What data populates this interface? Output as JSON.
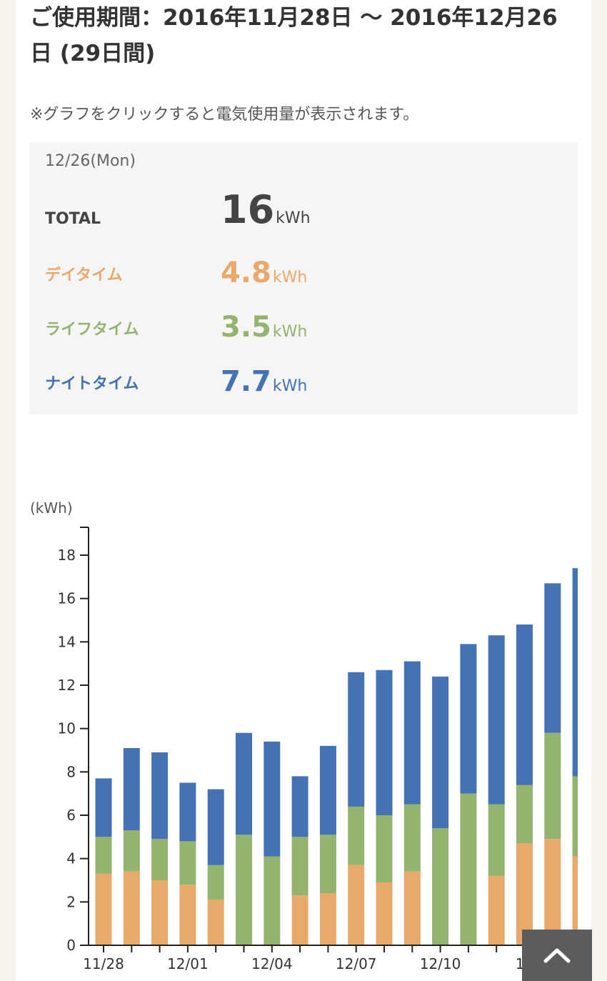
{
  "header": {
    "period_title": "ご使用期間：2016年11月28日 〜 2016年12月26日 (29日間)"
  },
  "note": "※グラフをクリックすると電気使用量が表示されます。",
  "summary": {
    "date": "12/26(Mon)",
    "unit": "kWh",
    "total": {
      "label": "TOTAL",
      "value": "16"
    },
    "daytime": {
      "label": "デイタイム",
      "value": "4.8"
    },
    "lifetime": {
      "label": "ライフタイム",
      "value": "3.5"
    },
    "nighttime": {
      "label": "ナイトタイム",
      "value": "7.7"
    }
  },
  "colors": {
    "daytime": "#e8a96b",
    "lifetime": "#94b36f",
    "nighttime": "#4472b4"
  },
  "back_to_top_icon": "chevron-up-icon",
  "chart_data": {
    "type": "bar",
    "stacked": true,
    "ylabel": "(kWh)",
    "ylim": [
      0,
      19
    ],
    "yticks": [
      0,
      2,
      4,
      6,
      8,
      10,
      12,
      14,
      16,
      18
    ],
    "categories": [
      "11/28",
      "11/29",
      "11/30",
      "12/01",
      "12/02",
      "12/03",
      "12/04",
      "12/05",
      "12/06",
      "12/07",
      "12/08",
      "12/09",
      "12/10",
      "12/11",
      "12/12",
      "12/13",
      "12/14",
      "12/15"
    ],
    "xtick_labels": [
      "11/28",
      "12/01",
      "12/04",
      "12/07",
      "12/10",
      "12/13"
    ],
    "xtick_visible_text": [
      "11/28",
      "12/01",
      "12/04",
      "12/07",
      "12/10",
      "12"
    ],
    "series": [
      {
        "color": "#e8a96b",
        "values": [
          3.3,
          3.4,
          3.0,
          2.8,
          2.1,
          0,
          0,
          2.3,
          2.4,
          3.7,
          2.9,
          3.4,
          0,
          0,
          3.2,
          4.7,
          4.9,
          4.1
        ]
      },
      {
        "color": "#94b36f",
        "values": [
          1.7,
          1.9,
          1.9,
          2.0,
          1.6,
          5.1,
          4.1,
          2.7,
          2.7,
          2.7,
          3.1,
          3.1,
          5.4,
          7.0,
          3.3,
          2.7,
          4.9,
          3.7
        ]
      },
      {
        "color": "#4472b4",
        "values": [
          2.7,
          3.8,
          4.0,
          2.7,
          3.5,
          4.7,
          5.3,
          2.8,
          4.1,
          6.2,
          6.7,
          6.6,
          7.0,
          6.9,
          7.8,
          7.4,
          6.9,
          9.6
        ]
      }
    ]
  }
}
